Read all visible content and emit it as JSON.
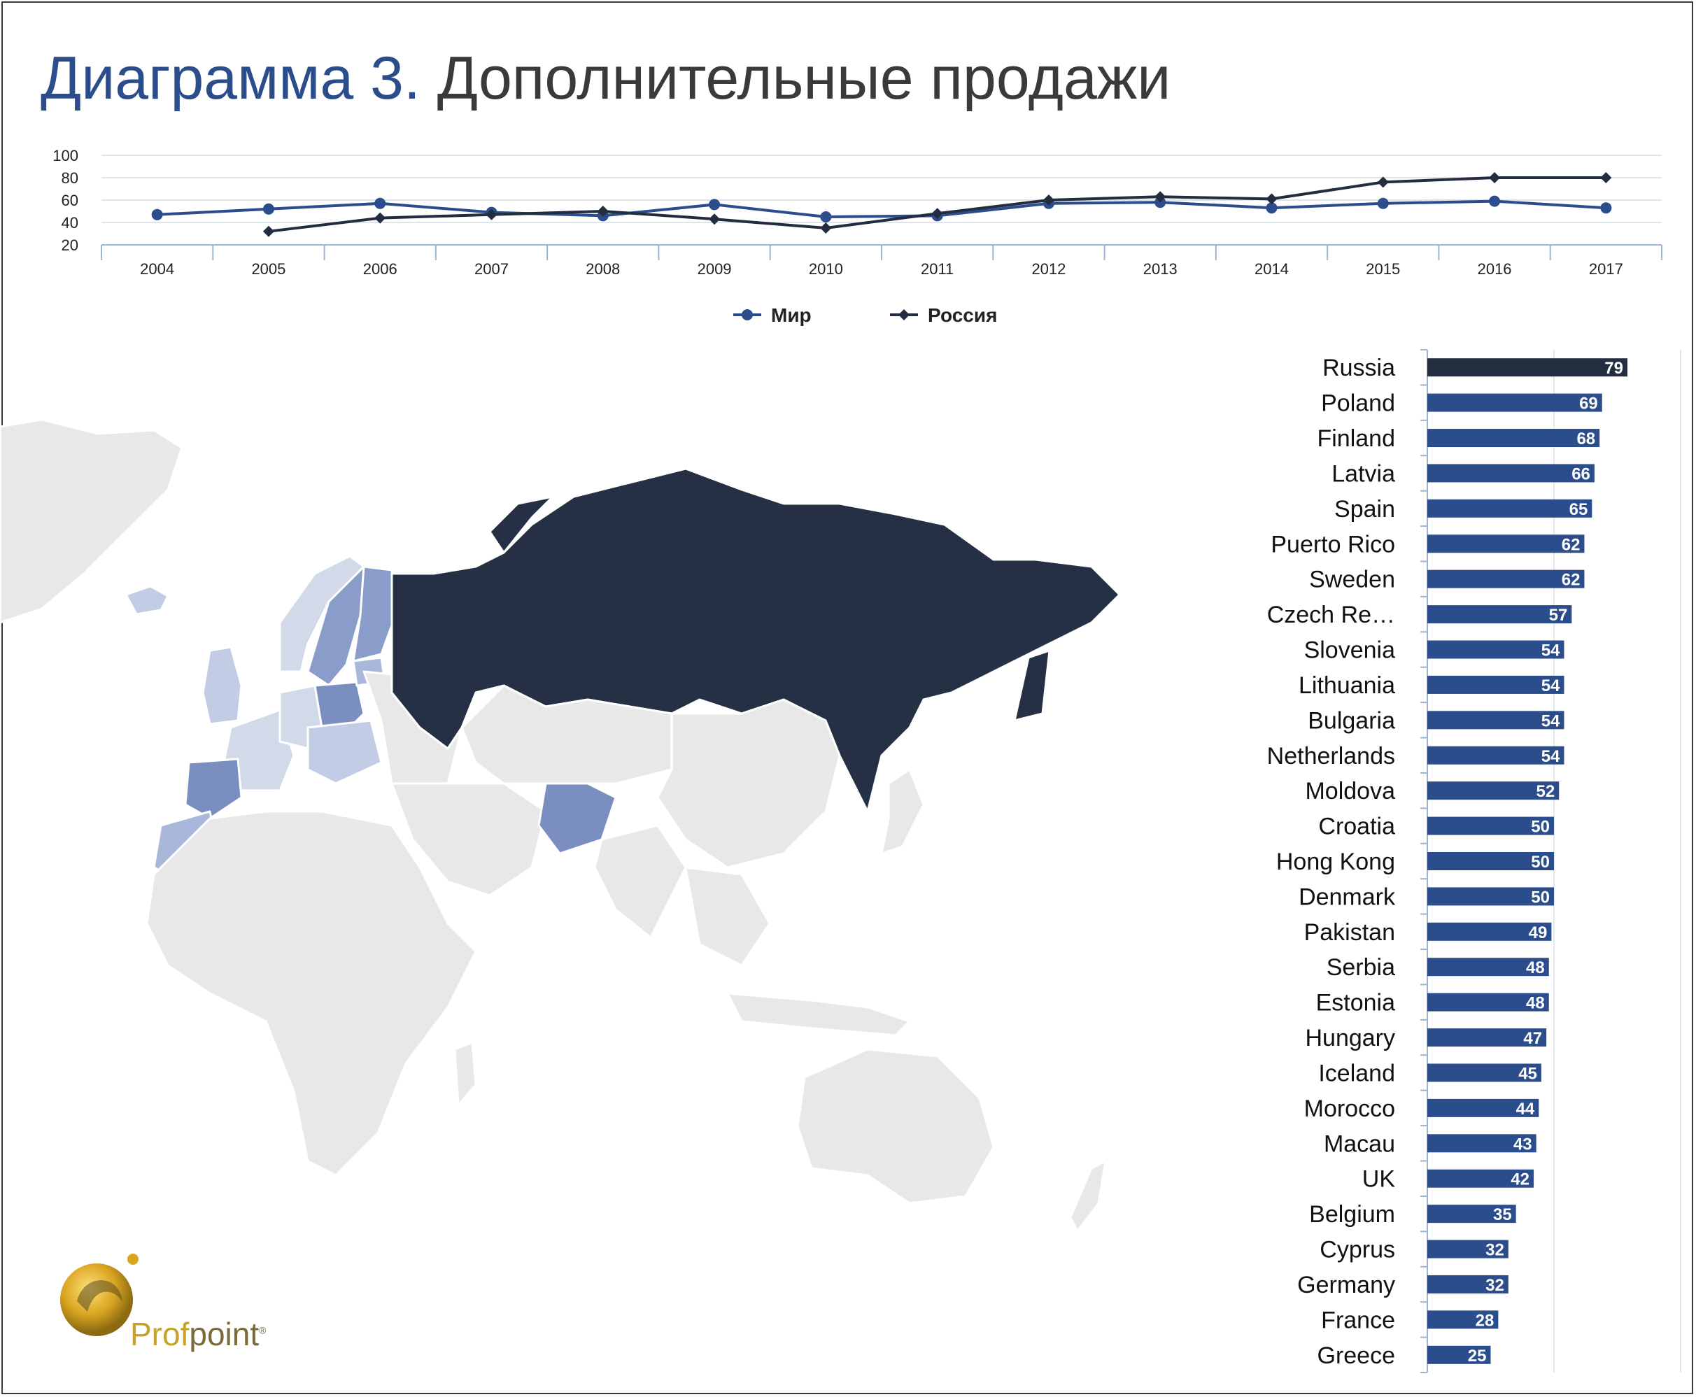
{
  "title": {
    "number": "Диаграмма 3.",
    "text": "Дополнительные продажи"
  },
  "chart_data": [
    {
      "type": "line",
      "x": [
        "2004",
        "2005",
        "2006",
        "2007",
        "2008",
        "2009",
        "2010",
        "2011",
        "2012",
        "2013",
        "2014",
        "2015",
        "2016",
        "2017"
      ],
      "ylim": [
        20,
        100
      ],
      "yticks": [
        20,
        40,
        60,
        80,
        100
      ],
      "grid": true,
      "legend": "bottom",
      "series": [
        {
          "name": "Мир",
          "color": "#2c4d8c",
          "marker": "circle",
          "values": [
            47,
            52,
            57,
            49,
            46,
            56,
            45,
            46,
            57,
            58,
            53,
            57,
            59,
            53
          ]
        },
        {
          "name": "Россия",
          "color": "#222d40",
          "marker": "diamond",
          "values": [
            null,
            32,
            44,
            47,
            50,
            43,
            35,
            48,
            60,
            63,
            61,
            76,
            80,
            80
          ]
        }
      ]
    },
    {
      "type": "bar",
      "orientation": "horizontal",
      "categories": [
        "Russia",
        "Poland",
        "Finland",
        "Latvia",
        "Spain",
        "Puerto Rico",
        "Sweden",
        "Czech Re…",
        "Slovenia",
        "Lithuania",
        "Bulgaria",
        "Netherlands",
        "Moldova",
        "Croatia",
        "Hong Kong",
        "Denmark",
        "Pakistan",
        "Serbia",
        "Estonia",
        "Hungary",
        "Iceland",
        "Morocco",
        "Macau",
        "UK",
        "Belgium",
        "Cyprus",
        "Germany",
        "France",
        "Greece"
      ],
      "values": [
        79,
        69,
        68,
        66,
        65,
        62,
        62,
        57,
        54,
        54,
        54,
        54,
        52,
        50,
        50,
        50,
        49,
        48,
        48,
        47,
        45,
        44,
        43,
        42,
        35,
        32,
        32,
        28,
        25
      ],
      "highlight_color": "#222d40",
      "bar_color": "#2c4d8c",
      "xlim": [
        0,
        100
      ]
    }
  ],
  "map": {
    "highlight": "Russia",
    "colors": {
      "russia": "#263045",
      "high": "#7a8fc0",
      "mid": "#a9b8da",
      "low": "#d2daea",
      "none": "#e8e8e8"
    }
  },
  "logo": {
    "part1": "Prof",
    "part2": "point",
    "mark": "®"
  }
}
